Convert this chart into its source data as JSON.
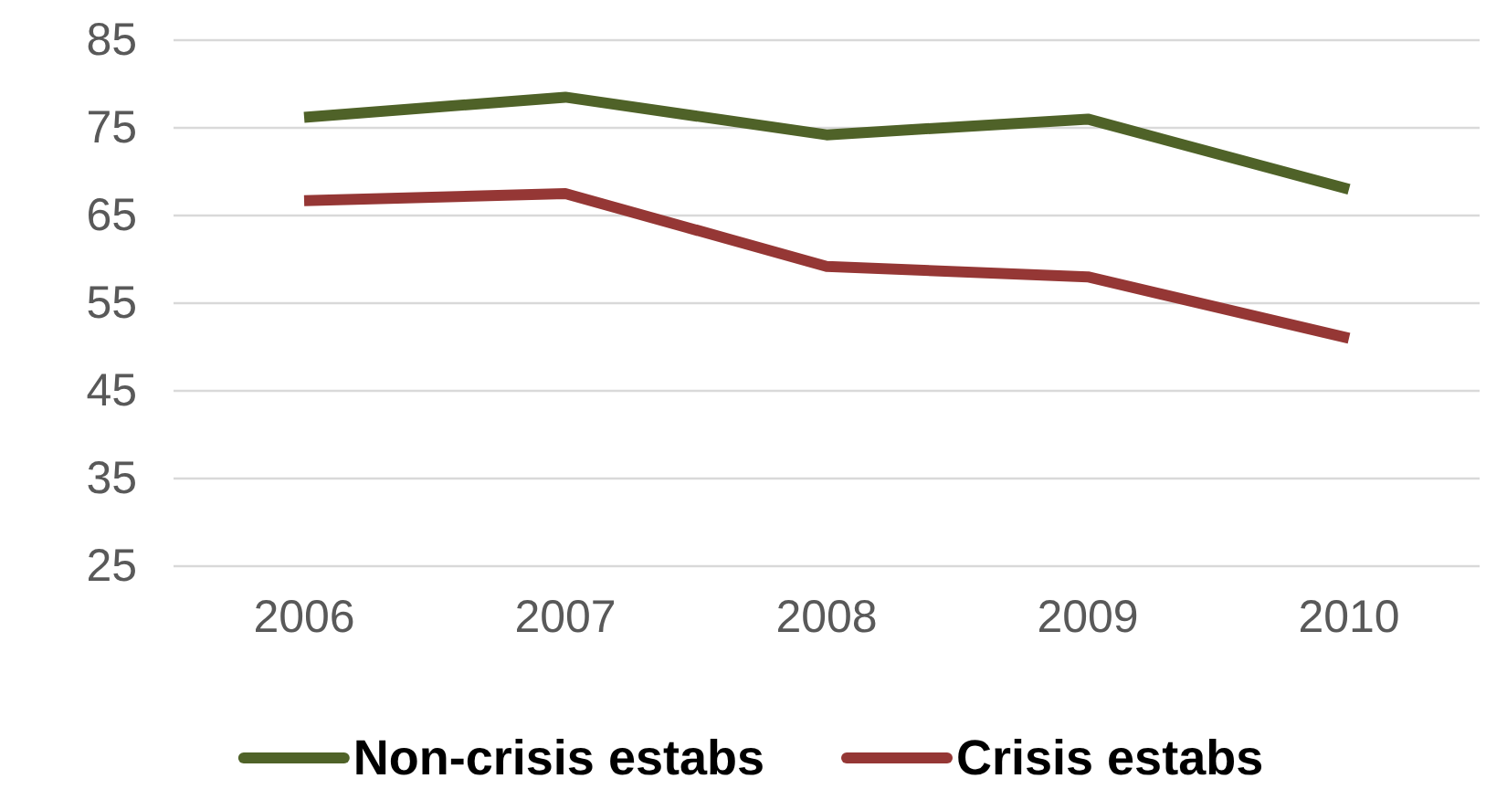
{
  "chart_data": {
    "type": "line",
    "categories": [
      "2006",
      "2007",
      "2008",
      "2009",
      "2010"
    ],
    "series": [
      {
        "name": "Non-crisis estabs",
        "color": "#4f6228",
        "values": [
          76.2,
          78.5,
          74.2,
          76,
          68
        ]
      },
      {
        "name": "Crisis estabs",
        "color": "#953735",
        "values": [
          66.7,
          67.5,
          59.2,
          58,
          51
        ]
      }
    ],
    "ylim": [
      25,
      85
    ],
    "yticks": [
      25,
      35,
      45,
      55,
      65,
      75,
      85
    ],
    "grid": "y",
    "legend": "bottom",
    "marker": "none",
    "line_style": "solid"
  }
}
